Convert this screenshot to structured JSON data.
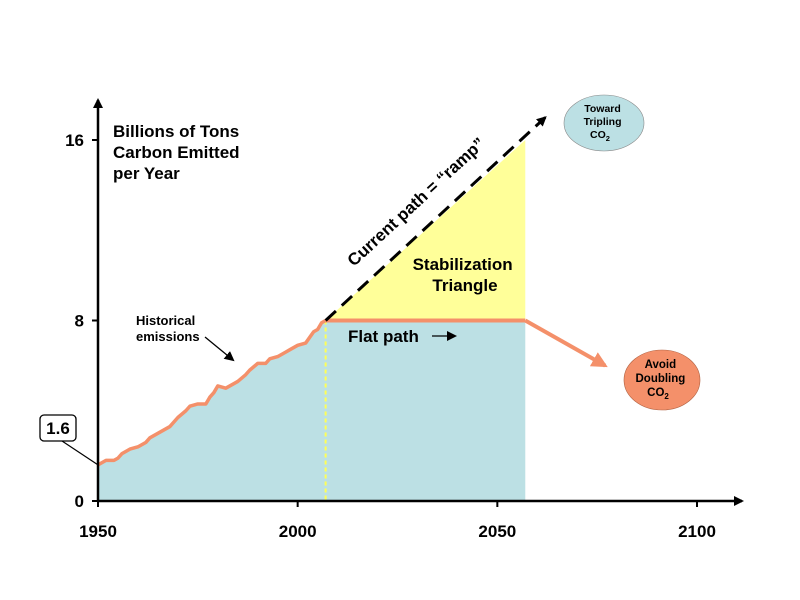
{
  "chart_data": {
    "type": "area",
    "title": "",
    "ylabel_lines": [
      "Billions of Tons",
      "Carbon Emitted",
      "per Year"
    ],
    "xlabel": "",
    "xlim": [
      1950,
      2110
    ],
    "ylim": [
      0,
      17
    ],
    "x_ticks": [
      1950,
      2000,
      2050,
      2100
    ],
    "x_tick_labels": [
      "1950",
      "2000",
      "2050",
      "2100"
    ],
    "y_ticks": [
      0,
      8,
      16
    ],
    "y_tick_labels": [
      "0",
      "8",
      "16"
    ],
    "callout_value": 1.6,
    "callout_label": "1.6",
    "series": [
      {
        "name": "Historical emissions",
        "x": [
          1950,
          1952,
          1954,
          1955,
          1956,
          1958,
          1960,
          1962,
          1963,
          1965,
          1967,
          1968,
          1970,
          1972,
          1973,
          1975,
          1977,
          1978,
          1979,
          1980,
          1982,
          1983,
          1985,
          1987,
          1988,
          1990,
          1992,
          1993,
          1995,
          1997,
          1998,
          2000,
          2002,
          2004,
          2005,
          2006,
          2007
        ],
        "values": [
          1.6,
          1.8,
          1.8,
          1.9,
          2.1,
          2.3,
          2.4,
          2.6,
          2.8,
          3.0,
          3.2,
          3.3,
          3.7,
          4.0,
          4.2,
          4.3,
          4.3,
          4.6,
          4.8,
          5.1,
          5.0,
          5.1,
          5.3,
          5.6,
          5.8,
          6.1,
          6.1,
          6.3,
          6.4,
          6.6,
          6.7,
          6.9,
          7.0,
          7.5,
          7.6,
          7.9,
          8.0
        ],
        "color": "#f4906a"
      },
      {
        "name": "Flat path",
        "x": [
          2007,
          2057
        ],
        "values": [
          8,
          8
        ],
        "color": "#f4906a"
      },
      {
        "name": "Avoid Doubling CO2",
        "x": [
          2057,
          2077
        ],
        "values": [
          8,
          6
        ],
        "color": "#f4906a"
      },
      {
        "name": "Current path = “ramp”",
        "x": [
          2007,
          2062
        ],
        "values": [
          8,
          17
        ],
        "color": "#000000",
        "style": "dashed"
      }
    ],
    "stabilization_triangle": {
      "x": [
        2007,
        2057,
        2057
      ],
      "values": [
        8,
        16,
        8
      ],
      "color": "#ffff99"
    },
    "below_fill_color": "#bce0e4",
    "divider_x": 2007,
    "divider_color": "#ffff55",
    "annotations": {
      "historical_lines": [
        "Historical",
        "emissions"
      ],
      "current_path": "Current path = “ramp”",
      "stabilization_lines": [
        "Stabilization",
        "Triangle"
      ],
      "flat_path": "Flat path",
      "tripling_lines": [
        "Toward",
        "Tripling",
        "CO"
      ],
      "tripling_subscript": "2",
      "doubling_lines": [
        "Avoid",
        "Doubling",
        "CO"
      ],
      "doubling_subscript": "2",
      "tripling_color": "#bce0e4",
      "doubling_color": "#f4906a"
    },
    "grid": false
  }
}
